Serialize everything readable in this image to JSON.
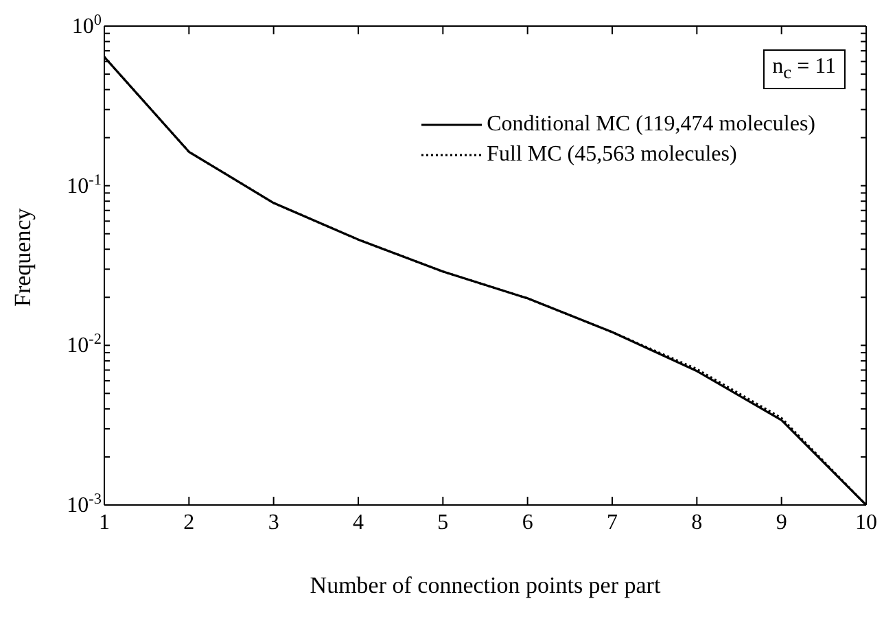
{
  "chart_data": {
    "type": "line",
    "xlabel": "Number of connection points per part",
    "ylabel": "Frequency",
    "x": [
      1,
      2,
      3,
      4,
      5,
      6,
      7,
      8,
      9,
      10
    ],
    "series": [
      {
        "name": "Conditional MC (119,474 molecules)",
        "color": "#000000",
        "line_style": "solid",
        "values": [
          0.64,
          0.163,
          0.078,
          0.046,
          0.029,
          0.0197,
          0.0121,
          0.0069,
          0.0034,
          0.001
        ]
      },
      {
        "name": "Full MC (45,563 molecules)",
        "color": "#000000",
        "line_style": "dotted",
        "values": [
          0.64,
          0.163,
          0.078,
          0.046,
          0.029,
          0.0197,
          0.0121,
          0.0071,
          0.0035,
          0.001
        ]
      }
    ],
    "xlim": [
      1,
      10
    ],
    "xticks": [
      1,
      2,
      3,
      4,
      5,
      6,
      7,
      8,
      9,
      10
    ],
    "ylim": [
      0.001,
      1
    ],
    "yticks": [
      {
        "value": 0.001,
        "label": "10$^{-3}$"
      },
      {
        "value": 0.002,
        "label": null
      },
      {
        "value": 0.003,
        "label": null
      },
      {
        "value": 0.004,
        "label": null
      },
      {
        "value": 0.005,
        "label": null
      },
      {
        "value": 0.006,
        "label": null
      },
      {
        "value": 0.007,
        "label": null
      },
      {
        "value": 0.008,
        "label": null
      },
      {
        "value": 0.009,
        "label": null
      },
      {
        "value": 0.01,
        "label": "10$^{-2}$"
      },
      {
        "value": 0.02,
        "label": null
      },
      {
        "value": 0.03,
        "label": null
      },
      {
        "value": 0.04,
        "label": null
      },
      {
        "value": 0.05,
        "label": null
      },
      {
        "value": 0.06,
        "label": null
      },
      {
        "value": 0.07,
        "label": null
      },
      {
        "value": 0.08,
        "label": null
      },
      {
        "value": 0.09,
        "label": null
      },
      {
        "value": 0.1,
        "label": "10$^{-1}$"
      },
      {
        "value": 0.2,
        "label": null
      },
      {
        "value": 0.3,
        "label": null
      },
      {
        "value": 0.4,
        "label": null
      },
      {
        "value": 0.5,
        "label": null
      },
      {
        "value": 0.6,
        "label": null
      },
      {
        "value": 0.7,
        "label": null
      },
      {
        "value": 0.8,
        "label": null
      },
      {
        "value": 0.9,
        "label": null
      },
      {
        "value": 1,
        "label": "10$^{0}$"
      }
    ],
    "log": "y",
    "grid": false,
    "legend": "top right",
    "marker": "none",
    "annotations": [
      "n$_{c}$ = 11"
    ]
  }
}
